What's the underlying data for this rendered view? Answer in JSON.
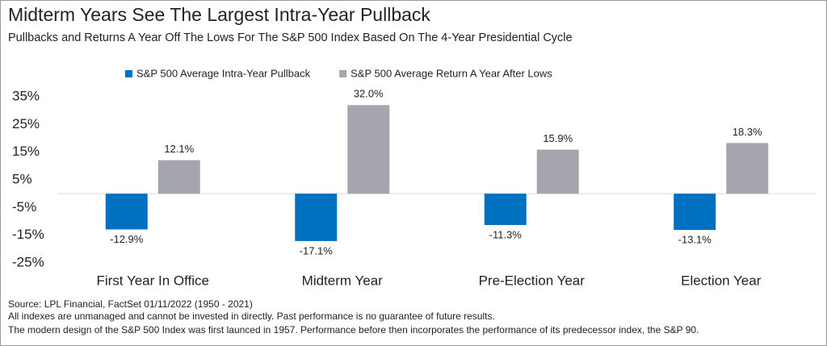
{
  "chart_data": {
    "type": "bar",
    "title": "Midterm Years See The Largest Intra-Year Pullback",
    "subtitle": "Pullbacks and Returns A Year Off The Lows For The S&P 500 Index Based On The 4-Year Presidential Cycle",
    "categories": [
      "First Year In Office",
      "Midterm Year",
      "Pre-Election Year",
      "Election Year"
    ],
    "series": [
      {
        "name": "S&P 500 Average Intra-Year Pullback",
        "color": "#0070c0",
        "values": [
          -12.9,
          -17.1,
          -11.3,
          -13.1
        ],
        "value_labels": [
          "-12.9%",
          "-17.1%",
          "-11.3%",
          "-13.1%"
        ]
      },
      {
        "name": "S&P 500 Average Return A Year After Lows",
        "color": "#a5a5ad",
        "values": [
          12.1,
          32.0,
          15.9,
          18.3
        ],
        "value_labels": [
          "12.1%",
          "32.0%",
          "15.9%",
          "18.3%"
        ]
      }
    ],
    "ylim": [
      -25,
      35
    ],
    "yticks": [
      {
        "value": -25,
        "label": "-25%"
      },
      {
        "value": -15,
        "label": "-15%"
      },
      {
        "value": -5,
        "label": "-5%"
      },
      {
        "value": 5,
        "label": "5%"
      },
      {
        "value": 15,
        "label": "15%"
      },
      {
        "value": 25,
        "label": "25%"
      },
      {
        "value": 35,
        "label": "35%"
      }
    ],
    "grid": false,
    "legend": "top",
    "notes": [
      "Source: LPL Financial, FactSet 01/11/2022 (1950 - 2021)",
      "All indexes are unmanaged and cannot be invested in directly. Past performance is no guarantee of future results.",
      "The modern design of the S&P 500 Index was first launced in 1957. Performance before then incorporates the performance of its predecessor index, the S&P 90."
    ]
  }
}
